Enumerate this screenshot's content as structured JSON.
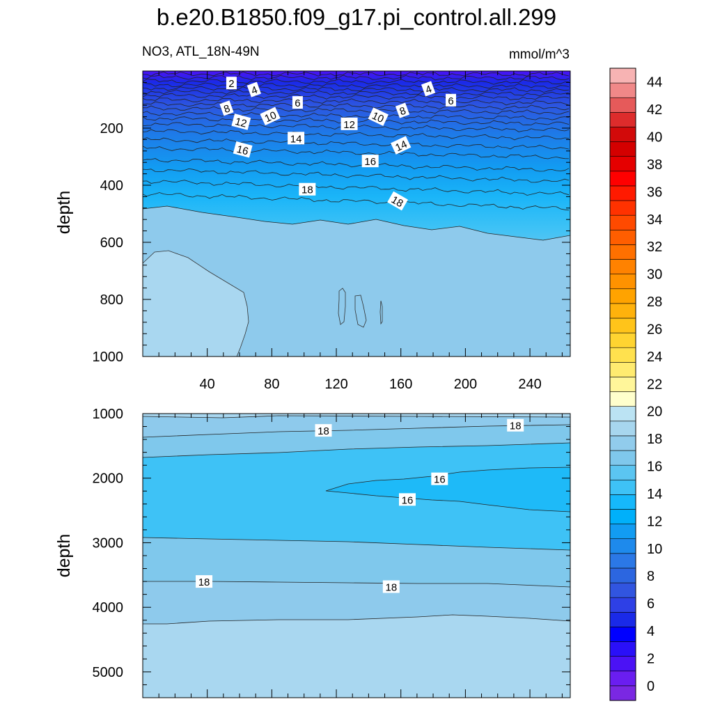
{
  "chart_data": {
    "type": "contour",
    "title": "b.e20.B1850.f09_g17.pi_control.all.299",
    "variable_label": "NO3, ATL_18N-49N",
    "units": "mmol/m^3",
    "ylabel": "depth",
    "panels": [
      {
        "name": "upper",
        "xlim": [
          0,
          265
        ],
        "ylim": [
          1000,
          0
        ],
        "xticks": [
          40,
          80,
          120,
          160,
          200,
          240
        ],
        "yticks": [
          200,
          400,
          600,
          800,
          1000
        ],
        "contour_labels": [
          {
            "text": "2",
            "x": 55,
            "y": 42,
            "rot": 0
          },
          {
            "text": "4",
            "x": 69,
            "y": 65,
            "rot": -20
          },
          {
            "text": "6",
            "x": 96,
            "y": 110,
            "rot": 0
          },
          {
            "text": "8",
            "x": 52,
            "y": 130,
            "rot": -20
          },
          {
            "text": "10",
            "x": 79,
            "y": 158,
            "rot": -25
          },
          {
            "text": "12",
            "x": 61,
            "y": 178,
            "rot": 15
          },
          {
            "text": "14",
            "x": 95,
            "y": 235,
            "rot": 0
          },
          {
            "text": "16",
            "x": 62,
            "y": 275,
            "rot": 15
          },
          {
            "text": "18",
            "x": 102,
            "y": 414,
            "rot": 0
          },
          {
            "text": "4",
            "x": 177,
            "y": 62,
            "rot": -20
          },
          {
            "text": "6",
            "x": 191,
            "y": 102,
            "rot": 0
          },
          {
            "text": "8",
            "x": 161,
            "y": 138,
            "rot": -20
          },
          {
            "text": "10",
            "x": 146,
            "y": 160,
            "rot": 25
          },
          {
            "text": "12",
            "x": 128,
            "y": 185,
            "rot": 0
          },
          {
            "text": "14",
            "x": 160,
            "y": 260,
            "rot": -25
          },
          {
            "text": "16",
            "x": 141,
            "y": 315,
            "rot": 0
          },
          {
            "text": "18",
            "x": 158,
            "y": 455,
            "rot": 30
          }
        ]
      },
      {
        "name": "lower",
        "xlim": [
          0,
          265
        ],
        "ylim": [
          5400,
          1000
        ],
        "yticks": [
          1000,
          2000,
          3000,
          4000,
          5000
        ],
        "contour_labels": [
          {
            "text": "18",
            "x": 112,
            "y": 1260,
            "rot": 0
          },
          {
            "text": "18",
            "x": 231,
            "y": 1180,
            "rot": 0
          },
          {
            "text": "16",
            "x": 184,
            "y": 2010,
            "rot": 0
          },
          {
            "text": "16",
            "x": 164,
            "y": 2330,
            "rot": 0
          },
          {
            "text": "18",
            "x": 38,
            "y": 3600,
            "rot": 0
          },
          {
            "text": "18",
            "x": 154,
            "y": 3680,
            "rot": 0
          }
        ]
      }
    ],
    "colorbar": {
      "levels": [
        -2,
        0,
        2,
        4,
        6,
        8,
        10,
        12,
        14,
        16,
        18,
        20,
        22,
        24,
        26,
        28,
        30,
        32,
        34,
        36,
        38,
        40,
        42,
        44,
        46
      ],
      "tick_labels": [
        "0",
        "2",
        "4",
        "6",
        "8",
        "10",
        "12",
        "14",
        "16",
        "18",
        "20",
        "22",
        "24",
        "26",
        "28",
        "30",
        "32",
        "34",
        "36",
        "38",
        "40",
        "42",
        "44"
      ],
      "colors": [
        "#7a28e2",
        "#6a1ef0",
        "#4b12f5",
        "#2a10f8",
        "#0000ff",
        "#1a2ae8",
        "#2e40e6",
        "#3155e0",
        "#2c66e0",
        "#2b78e6",
        "#1e8aec",
        "#129cf2",
        "#00b0fa",
        "#16b8fb",
        "#3ec2f6",
        "#5bc5f1",
        "#7fc8ec",
        "#91ccec",
        "#a7d6ee",
        "#bbe3f3",
        "#ffffcc",
        "#fff69a",
        "#ffeb70",
        "#ffe14e",
        "#ffd431",
        "#ffc41a",
        "#ffb20c",
        "#ffa300",
        "#ff9200",
        "#ff8200",
        "#ff7000",
        "#ff5e00",
        "#ff4a00",
        "#ff3200",
        "#ff1a00",
        "#ff0000",
        "#e50000",
        "#d40000",
        "#d20a0a",
        "#dd2c2c",
        "#e65a5a",
        "#f08888",
        "#f7b3b3"
      ]
    }
  }
}
